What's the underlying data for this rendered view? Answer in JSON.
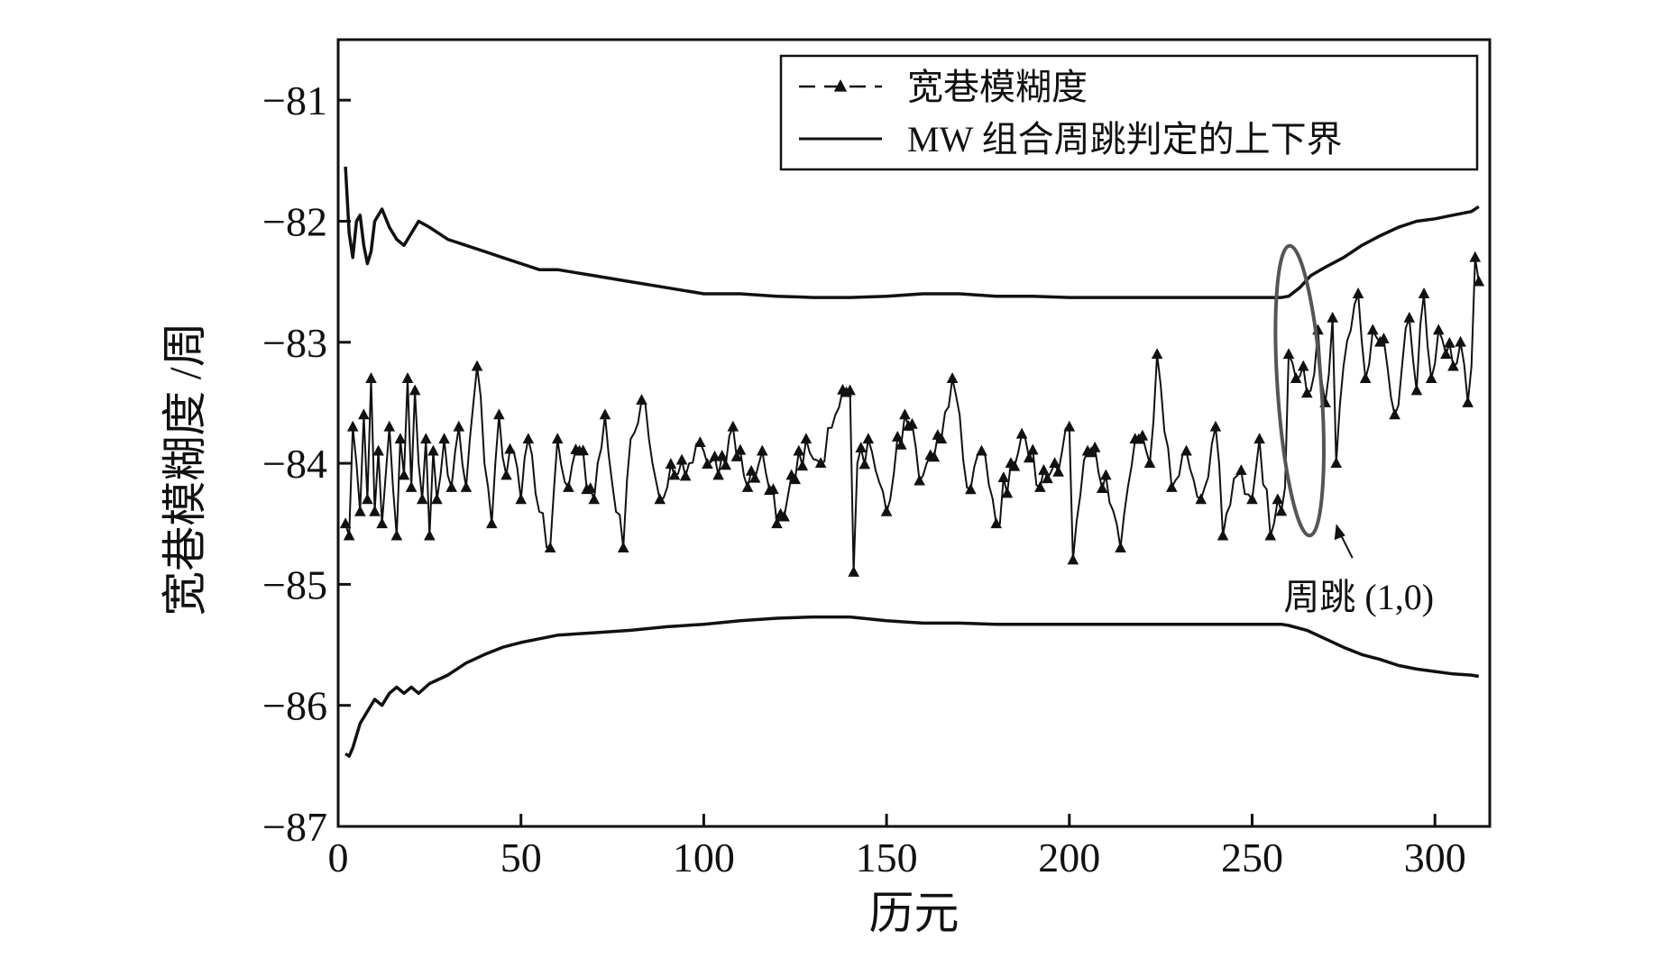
{
  "chart_data": {
    "type": "line",
    "title": "",
    "xlabel": "历元",
    "ylabel": "宽巷模糊度 /周",
    "xlim": [
      0,
      315
    ],
    "ylim": [
      -87,
      -80.5
    ],
    "xticks": [
      0,
      50,
      100,
      150,
      200,
      250,
      300
    ],
    "yticks": [
      -87,
      -86,
      -85,
      -84,
      -83,
      -82,
      -81
    ],
    "xtick_labels": [
      "0",
      "50",
      "100",
      "150",
      "200",
      "250",
      "300"
    ],
    "ytick_labels": [
      "−87",
      "−86",
      "−85",
      "−84",
      "−83",
      "−82",
      "−81"
    ],
    "grid": false,
    "legend": {
      "placement": "top-right",
      "entries": [
        {
          "label": "宽巷模糊度",
          "style": "dashed-triangle"
        },
        {
          "label": "MW 组合周跳判定的上下界",
          "style": "solid"
        }
      ]
    },
    "annotation": {
      "text": "周跳 (1,0)",
      "points_to_x": 273,
      "points_to_y": -84.5,
      "ellipse_center": [
        263,
        -83.4
      ],
      "ellipse_rx_x_units": 6,
      "ellipse_ry_y_units": 1.2
    },
    "series": [
      {
        "label_ref": 0,
        "style": "dashed-triangle",
        "color": "#111111",
        "control_points": {
          "x": [
            2,
            3,
            4,
            5,
            6,
            7,
            8,
            9,
            10,
            11,
            12,
            13,
            14,
            15,
            16,
            17,
            18,
            19,
            20,
            21,
            22,
            23,
            24,
            25,
            26,
            27,
            28,
            29,
            30,
            31,
            33,
            35,
            37,
            38,
            40,
            42,
            44,
            46,
            48,
            50,
            52,
            55,
            58,
            60,
            63,
            66,
            70,
            73,
            76,
            78,
            80,
            84,
            88,
            92,
            96,
            100,
            104,
            108,
            112,
            116,
            120,
            124,
            128,
            132,
            136,
            140,
            141,
            142,
            145,
            150,
            155,
            160,
            165,
            168,
            172,
            176,
            180,
            184,
            188,
            192,
            196,
            200,
            201,
            205,
            210,
            214,
            218,
            222,
            224,
            228,
            232,
            236,
            240,
            242,
            246,
            250,
            252,
            255,
            257,
            259,
            260,
            262,
            264,
            266,
            268,
            270,
            272,
            273,
            275,
            277,
            279,
            281,
            283,
            285,
            287,
            289,
            291,
            293,
            295,
            297,
            299,
            301,
            303,
            305,
            307,
            309,
            310,
            311,
            312
          ],
          "y": [
            -84.5,
            -84.6,
            -83.7,
            -84.0,
            -84.4,
            -83.6,
            -84.3,
            -83.3,
            -84.4,
            -83.9,
            -84.5,
            -84.1,
            -83.7,
            -84.2,
            -84.6,
            -83.8,
            -84.1,
            -83.3,
            -84.2,
            -83.4,
            -84.0,
            -84.3,
            -83.8,
            -84.6,
            -83.9,
            -84.3,
            -84.1,
            -83.8,
            -84.1,
            -84.2,
            -83.7,
            -84.2,
            -83.5,
            -83.2,
            -84.0,
            -84.5,
            -83.6,
            -84.1,
            -83.9,
            -84.3,
            -83.8,
            -84.4,
            -84.7,
            -83.8,
            -84.2,
            -83.9,
            -84.3,
            -83.6,
            -84.4,
            -84.7,
            -83.8,
            -83.5,
            -84.3,
            -84.1,
            -84.0,
            -83.9,
            -84.1,
            -83.7,
            -84.2,
            -83.9,
            -84.5,
            -84.1,
            -83.8,
            -84.0,
            -83.6,
            -83.4,
            -84.9,
            -84.0,
            -83.8,
            -84.4,
            -83.6,
            -84.1,
            -83.8,
            -83.3,
            -84.2,
            -83.9,
            -84.5,
            -84.0,
            -83.8,
            -84.2,
            -84.0,
            -83.7,
            -84.8,
            -83.9,
            -84.1,
            -84.7,
            -83.8,
            -84.0,
            -83.1,
            -84.2,
            -83.9,
            -84.3,
            -83.7,
            -84.6,
            -84.1,
            -84.3,
            -83.8,
            -84.6,
            -84.3,
            -84.2,
            -83.1,
            -83.3,
            -83.2,
            -83.4,
            -82.9,
            -83.5,
            -82.8,
            -84.0,
            -83.2,
            -82.9,
            -82.6,
            -83.3,
            -82.9,
            -83.0,
            -83.2,
            -83.6,
            -83.2,
            -82.8,
            -83.4,
            -82.6,
            -83.3,
            -82.9,
            -83.1,
            -83.2,
            -83.0,
            -83.5,
            -83.2,
            -82.3,
            -82.5
          ]
        },
        "x_start": 2,
        "x_end": 312,
        "x_step": 1,
        "noise_amplitude": 0.15
      },
      {
        "label_ref": 1,
        "style": "solid",
        "color": "#111111",
        "x": [
          2,
          3,
          4,
          5,
          6,
          7,
          8,
          9,
          10,
          12,
          14,
          16,
          18,
          20,
          22,
          25,
          30,
          35,
          40,
          45,
          50,
          55,
          60,
          70,
          80,
          90,
          100,
          110,
          120,
          130,
          140,
          150,
          160,
          170,
          180,
          190,
          200,
          210,
          220,
          230,
          240,
          250,
          255,
          258,
          260,
          263,
          266,
          270,
          275,
          280,
          285,
          290,
          295,
          300,
          305,
          310,
          312
        ],
        "y": [
          -81.55,
          -82.1,
          -82.3,
          -82.0,
          -81.95,
          -82.2,
          -82.35,
          -82.25,
          -82.0,
          -81.9,
          -82.05,
          -82.15,
          -82.2,
          -82.1,
          -82.0,
          -82.05,
          -82.15,
          -82.2,
          -82.25,
          -82.3,
          -82.35,
          -82.4,
          -82.4,
          -82.45,
          -82.5,
          -82.55,
          -82.6,
          -82.6,
          -82.62,
          -82.63,
          -82.63,
          -82.62,
          -82.6,
          -82.6,
          -82.62,
          -82.62,
          -82.63,
          -82.63,
          -82.63,
          -82.63,
          -82.63,
          -82.63,
          -82.63,
          -82.63,
          -82.62,
          -82.55,
          -82.45,
          -82.38,
          -82.3,
          -82.2,
          -82.12,
          -82.05,
          -82.0,
          -81.98,
          -81.95,
          -81.92,
          -81.88
        ]
      },
      {
        "label_ref": 1,
        "style": "solid",
        "color": "#111111",
        "x": [
          2,
          3,
          4,
          5,
          6,
          8,
          10,
          12,
          14,
          16,
          18,
          20,
          22,
          25,
          30,
          35,
          40,
          45,
          50,
          55,
          60,
          70,
          80,
          90,
          100,
          110,
          120,
          130,
          140,
          150,
          160,
          170,
          180,
          190,
          200,
          210,
          220,
          230,
          240,
          250,
          255,
          258,
          260,
          265,
          270,
          275,
          280,
          285,
          290,
          295,
          300,
          305,
          310,
          312
        ],
        "y": [
          -86.4,
          -86.42,
          -86.35,
          -86.25,
          -86.15,
          -86.05,
          -85.95,
          -86.0,
          -85.9,
          -85.85,
          -85.9,
          -85.85,
          -85.9,
          -85.82,
          -85.75,
          -85.65,
          -85.58,
          -85.52,
          -85.48,
          -85.45,
          -85.42,
          -85.4,
          -85.38,
          -85.35,
          -85.33,
          -85.3,
          -85.28,
          -85.27,
          -85.27,
          -85.3,
          -85.32,
          -85.32,
          -85.33,
          -85.33,
          -85.33,
          -85.33,
          -85.33,
          -85.33,
          -85.33,
          -85.33,
          -85.33,
          -85.33,
          -85.34,
          -85.38,
          -85.45,
          -85.52,
          -85.58,
          -85.62,
          -85.67,
          -85.7,
          -85.72,
          -85.74,
          -85.75,
          -85.76
        ]
      }
    ]
  }
}
